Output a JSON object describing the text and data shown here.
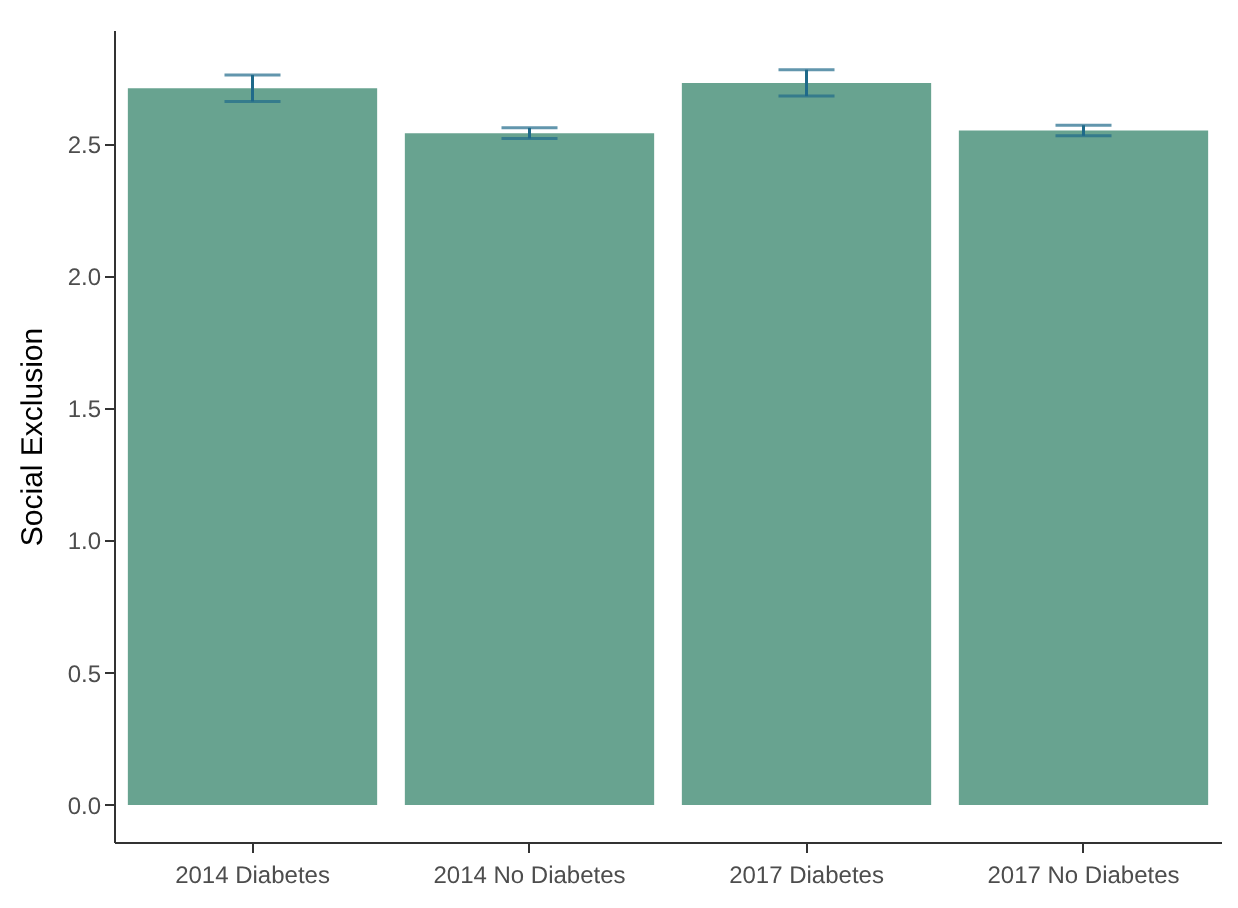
{
  "chart_data": {
    "type": "bar",
    "ylabel": "Social Exclusion",
    "categories": [
      "2014 Diabetes",
      "2014 No Diabetes",
      "2017 Diabetes",
      "2017 No Diabetes"
    ],
    "values": [
      2.71,
      2.54,
      2.73,
      2.55
    ],
    "errors": [
      0.05,
      0.02,
      0.05,
      0.02
    ],
    "color": "#68a390",
    "ylim": [
      -0.14,
      2.93
    ],
    "yticks": [
      {
        "value": 0,
        "label": "0.0"
      },
      0.5,
      {
        "value": 1,
        "label": "1.0"
      },
      1.5,
      {
        "value": 2,
        "label": "2.0"
      },
      2.5
    ],
    "grid": false
  }
}
